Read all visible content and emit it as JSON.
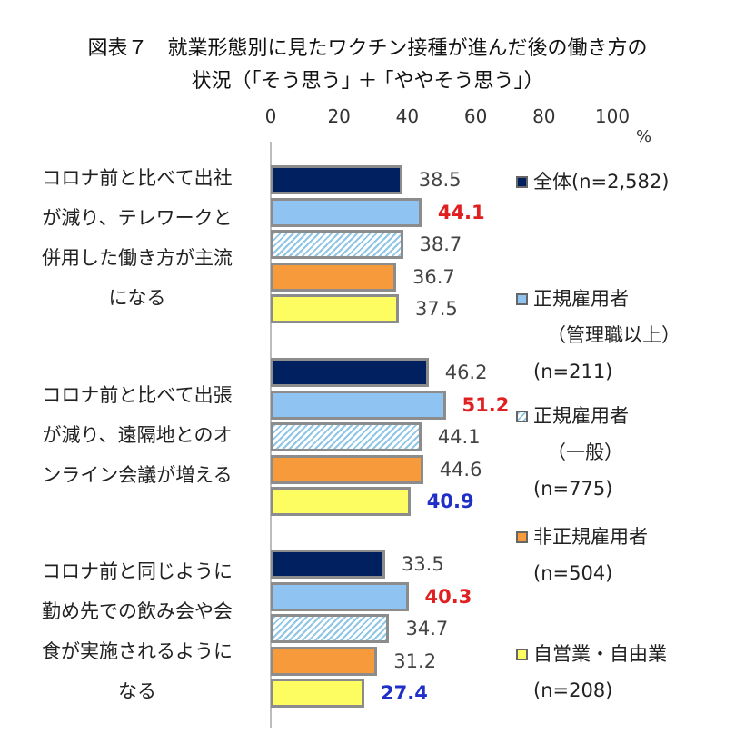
{
  "chart_data": {
    "type": "bar",
    "orientation": "horizontal",
    "title_lines": [
      "図表７　就業形態別に見たワクチン接種が進んだ後の働き方の",
      "状況（｢そう思う｣ ＋ ｢ややそう思う｣）"
    ],
    "x_ticks": [
      "0",
      "20",
      "40",
      "60",
      "80",
      "100"
    ],
    "unit": "%",
    "xlim": [
      0,
      100
    ],
    "categories": [
      [
        "コロナ前と比べて出社",
        "が減り、テレワークと",
        "併用した働き方が主流",
        "になる"
      ],
      [
        "コロナ前と比べて出張",
        "が減り、遠隔地とのオ",
        "ンライン会議が増える"
      ],
      [
        "コロナ前と同じように",
        "勤め先での飲み会や会",
        "食が実施されるように",
        "なる"
      ]
    ],
    "series": [
      {
        "key": "all",
        "name_lines": [
          "全体(n=2,582)"
        ],
        "color": "#002060",
        "pattern": "solid",
        "values": [
          38.5,
          46.2,
          33.5
        ],
        "labels": [
          "38.5",
          "46.2",
          "33.5"
        ],
        "emphasis": [
          "",
          "",
          ""
        ]
      },
      {
        "key": "regular_mgr",
        "name_lines": [
          "正規雇用者",
          "（管理職以上）",
          "(n=211)"
        ],
        "color": "#8fc3f2",
        "pattern": "solid",
        "values": [
          44.1,
          51.2,
          40.3
        ],
        "labels": [
          "44.1",
          "51.2",
          "40.3"
        ],
        "emphasis": [
          "red",
          "red",
          "red"
        ]
      },
      {
        "key": "regular_gen",
        "name_lines": [
          "正規雇用者",
          "（一般）",
          "(n=775)"
        ],
        "color": "#8fc6e6",
        "pattern": "hatch",
        "values": [
          38.7,
          44.1,
          34.7
        ],
        "labels": [
          "38.7",
          "44.1",
          "34.7"
        ],
        "emphasis": [
          "",
          "",
          ""
        ]
      },
      {
        "key": "nonregular",
        "name_lines": [
          "非正規雇用者",
          "(n=504)"
        ],
        "color": "#f79a3c",
        "pattern": "solid",
        "values": [
          36.7,
          44.6,
          31.2
        ],
        "labels": [
          "36.7",
          "44.6",
          "31.2"
        ],
        "emphasis": [
          "",
          "",
          ""
        ]
      },
      {
        "key": "self",
        "name_lines": [
          "自営業・自由業",
          "(n=208)"
        ],
        "color": "#fdfd62",
        "pattern": "solid",
        "values": [
          37.5,
          40.9,
          27.4
        ],
        "labels": [
          "37.5",
          "40.9",
          "27.4"
        ],
        "emphasis": [
          "",
          "blue",
          "blue"
        ]
      }
    ],
    "legend_position": "right",
    "grid": false
  }
}
